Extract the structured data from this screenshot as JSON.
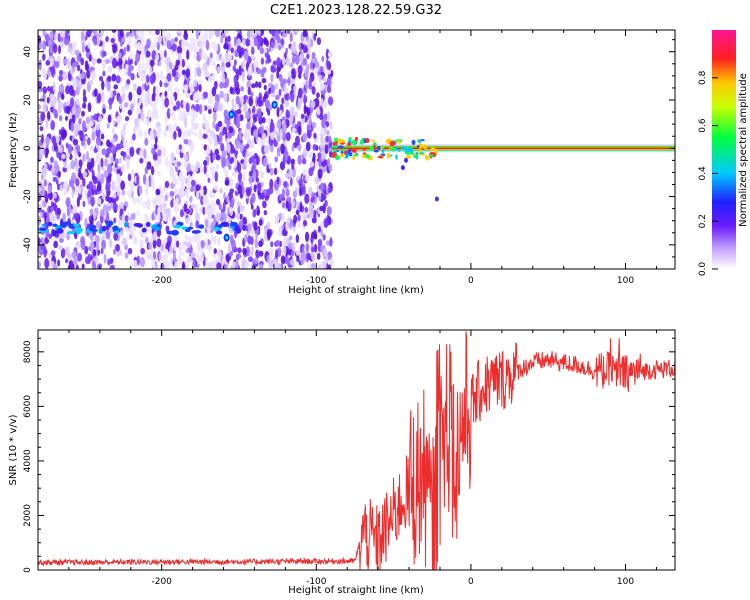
{
  "title": "C2E1.2023.128.22.59.G32",
  "chart_data": [
    {
      "type": "heatmap",
      "xlabel": "Height of straight line (km)",
      "ylabel": "Frequency (Hz)",
      "xlim": [
        -280,
        132
      ],
      "ylim": [
        -50,
        49
      ],
      "xticks": [
        -200,
        -100,
        0,
        100
      ],
      "yticks": [
        -40,
        -20,
        0,
        20,
        40
      ],
      "colorbar": {
        "label": "Normalized spectral amplitude",
        "range": [
          0.0,
          1.0
        ],
        "ticks": [
          0.0,
          0.2,
          0.4,
          0.6,
          0.8
        ],
        "colormap": "white-purple-blue-cyan-green-yellow-red-magenta"
      },
      "features": {
        "broadband_noise_x": [
          -280,
          -90
        ],
        "signal_line_frequency_hz": 0,
        "signal_line_x": [
          -90,
          132
        ],
        "secondary_band_frequency_hz": -33,
        "secondary_band_x": [
          -280,
          -150
        ]
      }
    },
    {
      "type": "line",
      "xlabel": "Height of straight line (km)",
      "ylabel": "SNR (10 * v/v)",
      "xlim": [
        -280,
        132
      ],
      "ylim": [
        0,
        8800
      ],
      "xticks": [
        -200,
        -100,
        0,
        100
      ],
      "yticks": [
        0,
        2000,
        4000,
        6000,
        8000
      ],
      "series": [
        {
          "color": "#ee2c2c",
          "x": [
            -280,
            -250,
            -200,
            -150,
            -100,
            -75,
            -70,
            -60,
            -50,
            -40,
            -30,
            -25,
            -20,
            -15,
            -10,
            -5,
            0,
            5,
            10,
            20,
            30,
            40,
            50,
            60,
            70,
            80,
            90,
            100,
            110,
            120,
            132
          ],
          "y": [
            280,
            280,
            300,
            300,
            320,
            330,
            1400,
            1000,
            2000,
            3000,
            3500,
            1500,
            4000,
            5000,
            4000,
            5500,
            6000,
            6500,
            6800,
            7000,
            7300,
            7600,
            7700,
            7600,
            7500,
            7300,
            7300,
            7200,
            7300,
            7350,
            7400
          ]
        }
      ]
    }
  ]
}
